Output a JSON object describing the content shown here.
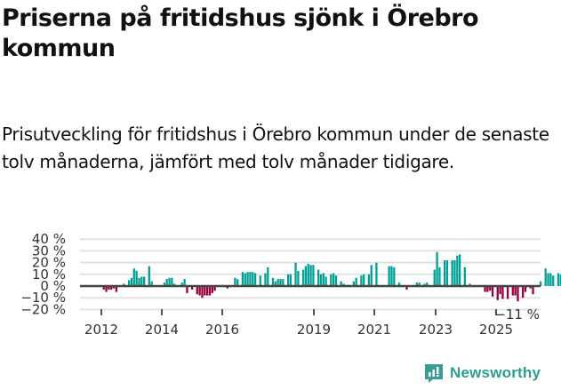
{
  "header": {
    "title": "Priserna på fritidshus sjönk i Örebro kommun",
    "subtitle": "Prisutveckling för fritidshus i Örebro kommun under de senaste tolv månaderna, jämfört med tolv månader tidigare."
  },
  "brand": {
    "name": "Newsworthy",
    "color": "#3a9d93"
  },
  "colors": {
    "positive": "#00a096",
    "negative": "#96003c",
    "zero_line": "#444444",
    "grid": "#e2e2e2"
  },
  "chart_data": {
    "type": "bar",
    "title": "Priserna på fritidshus sjönk i Örebro kommun",
    "subtitle": "Prisutveckling för fritidshus i Örebro kommun under de senaste tolv månaderna, jämfört med tolv månader tidigare.",
    "xlabel": "",
    "ylabel": "",
    "ylim": [
      -20,
      40
    ],
    "yticks": [
      "40 %",
      "30 %",
      "20 %",
      "10 %",
      "0 %",
      "−10 %",
      "−20 %"
    ],
    "ytick_values": [
      40,
      30,
      20,
      10,
      0,
      -10,
      -20
    ],
    "xticks": [
      "2012",
      "2014",
      "2016",
      "2019",
      "2021",
      "2023",
      "2025"
    ],
    "grid": true,
    "legend": "none",
    "start": "2011-04",
    "frequency": "monthly",
    "annotation": {
      "text": "−11 %",
      "target": "last value"
    },
    "values": [
      null,
      null,
      null,
      null,
      null,
      null,
      null,
      null,
      null,
      -3,
      -5,
      -3,
      -3,
      -2,
      -5,
      null,
      null,
      2,
      null,
      5,
      7,
      15,
      13,
      7,
      8,
      8,
      null,
      17,
      4,
      null,
      null,
      null,
      null,
      3,
      6,
      7,
      7,
      2,
      null,
      null,
      3,
      6,
      -6,
      null,
      -3,
      null,
      -7,
      -8,
      -10,
      -8,
      -8,
      -8,
      -6,
      -4,
      null,
      null,
      1,
      -1,
      -2,
      null,
      null,
      7,
      6,
      null,
      12,
      11,
      12,
      12,
      12,
      11,
      null,
      9,
      null,
      11,
      16,
      null,
      7,
      4,
      6,
      6,
      6,
      null,
      10,
      10,
      null,
      20,
      13,
      null,
      14,
      17,
      19,
      18,
      18,
      null,
      14,
      10,
      11,
      8,
      null,
      10,
      11,
      9,
      null,
      4,
      2,
      1,
      1,
      null,
      4,
      7,
      null,
      9,
      10,
      null,
      10,
      18,
      null,
      20,
      null,
      null,
      null,
      null,
      17,
      17,
      16,
      null,
      3,
      null,
      null,
      -3,
      null,
      null,
      null,
      3,
      3,
      null,
      2,
      3,
      null,
      null,
      14,
      29,
      16,
      null,
      22,
      22,
      null,
      22,
      22,
      26,
      27,
      null,
      16,
      null,
      2,
      null,
      null,
      null,
      null,
      null,
      -5,
      -5,
      -4,
      -9,
      null,
      -12,
      -7,
      -11,
      null,
      -11,
      null,
      -8,
      -8,
      -13,
      null,
      -10,
      -5,
      null,
      -2,
      -7,
      null,
      null,
      4,
      null,
      15,
      11,
      11,
      9,
      null,
      11,
      10,
      null,
      null,
      null,
      null,
      null,
      null,
      null,
      null,
      null,
      -14,
      -11
    ]
  }
}
